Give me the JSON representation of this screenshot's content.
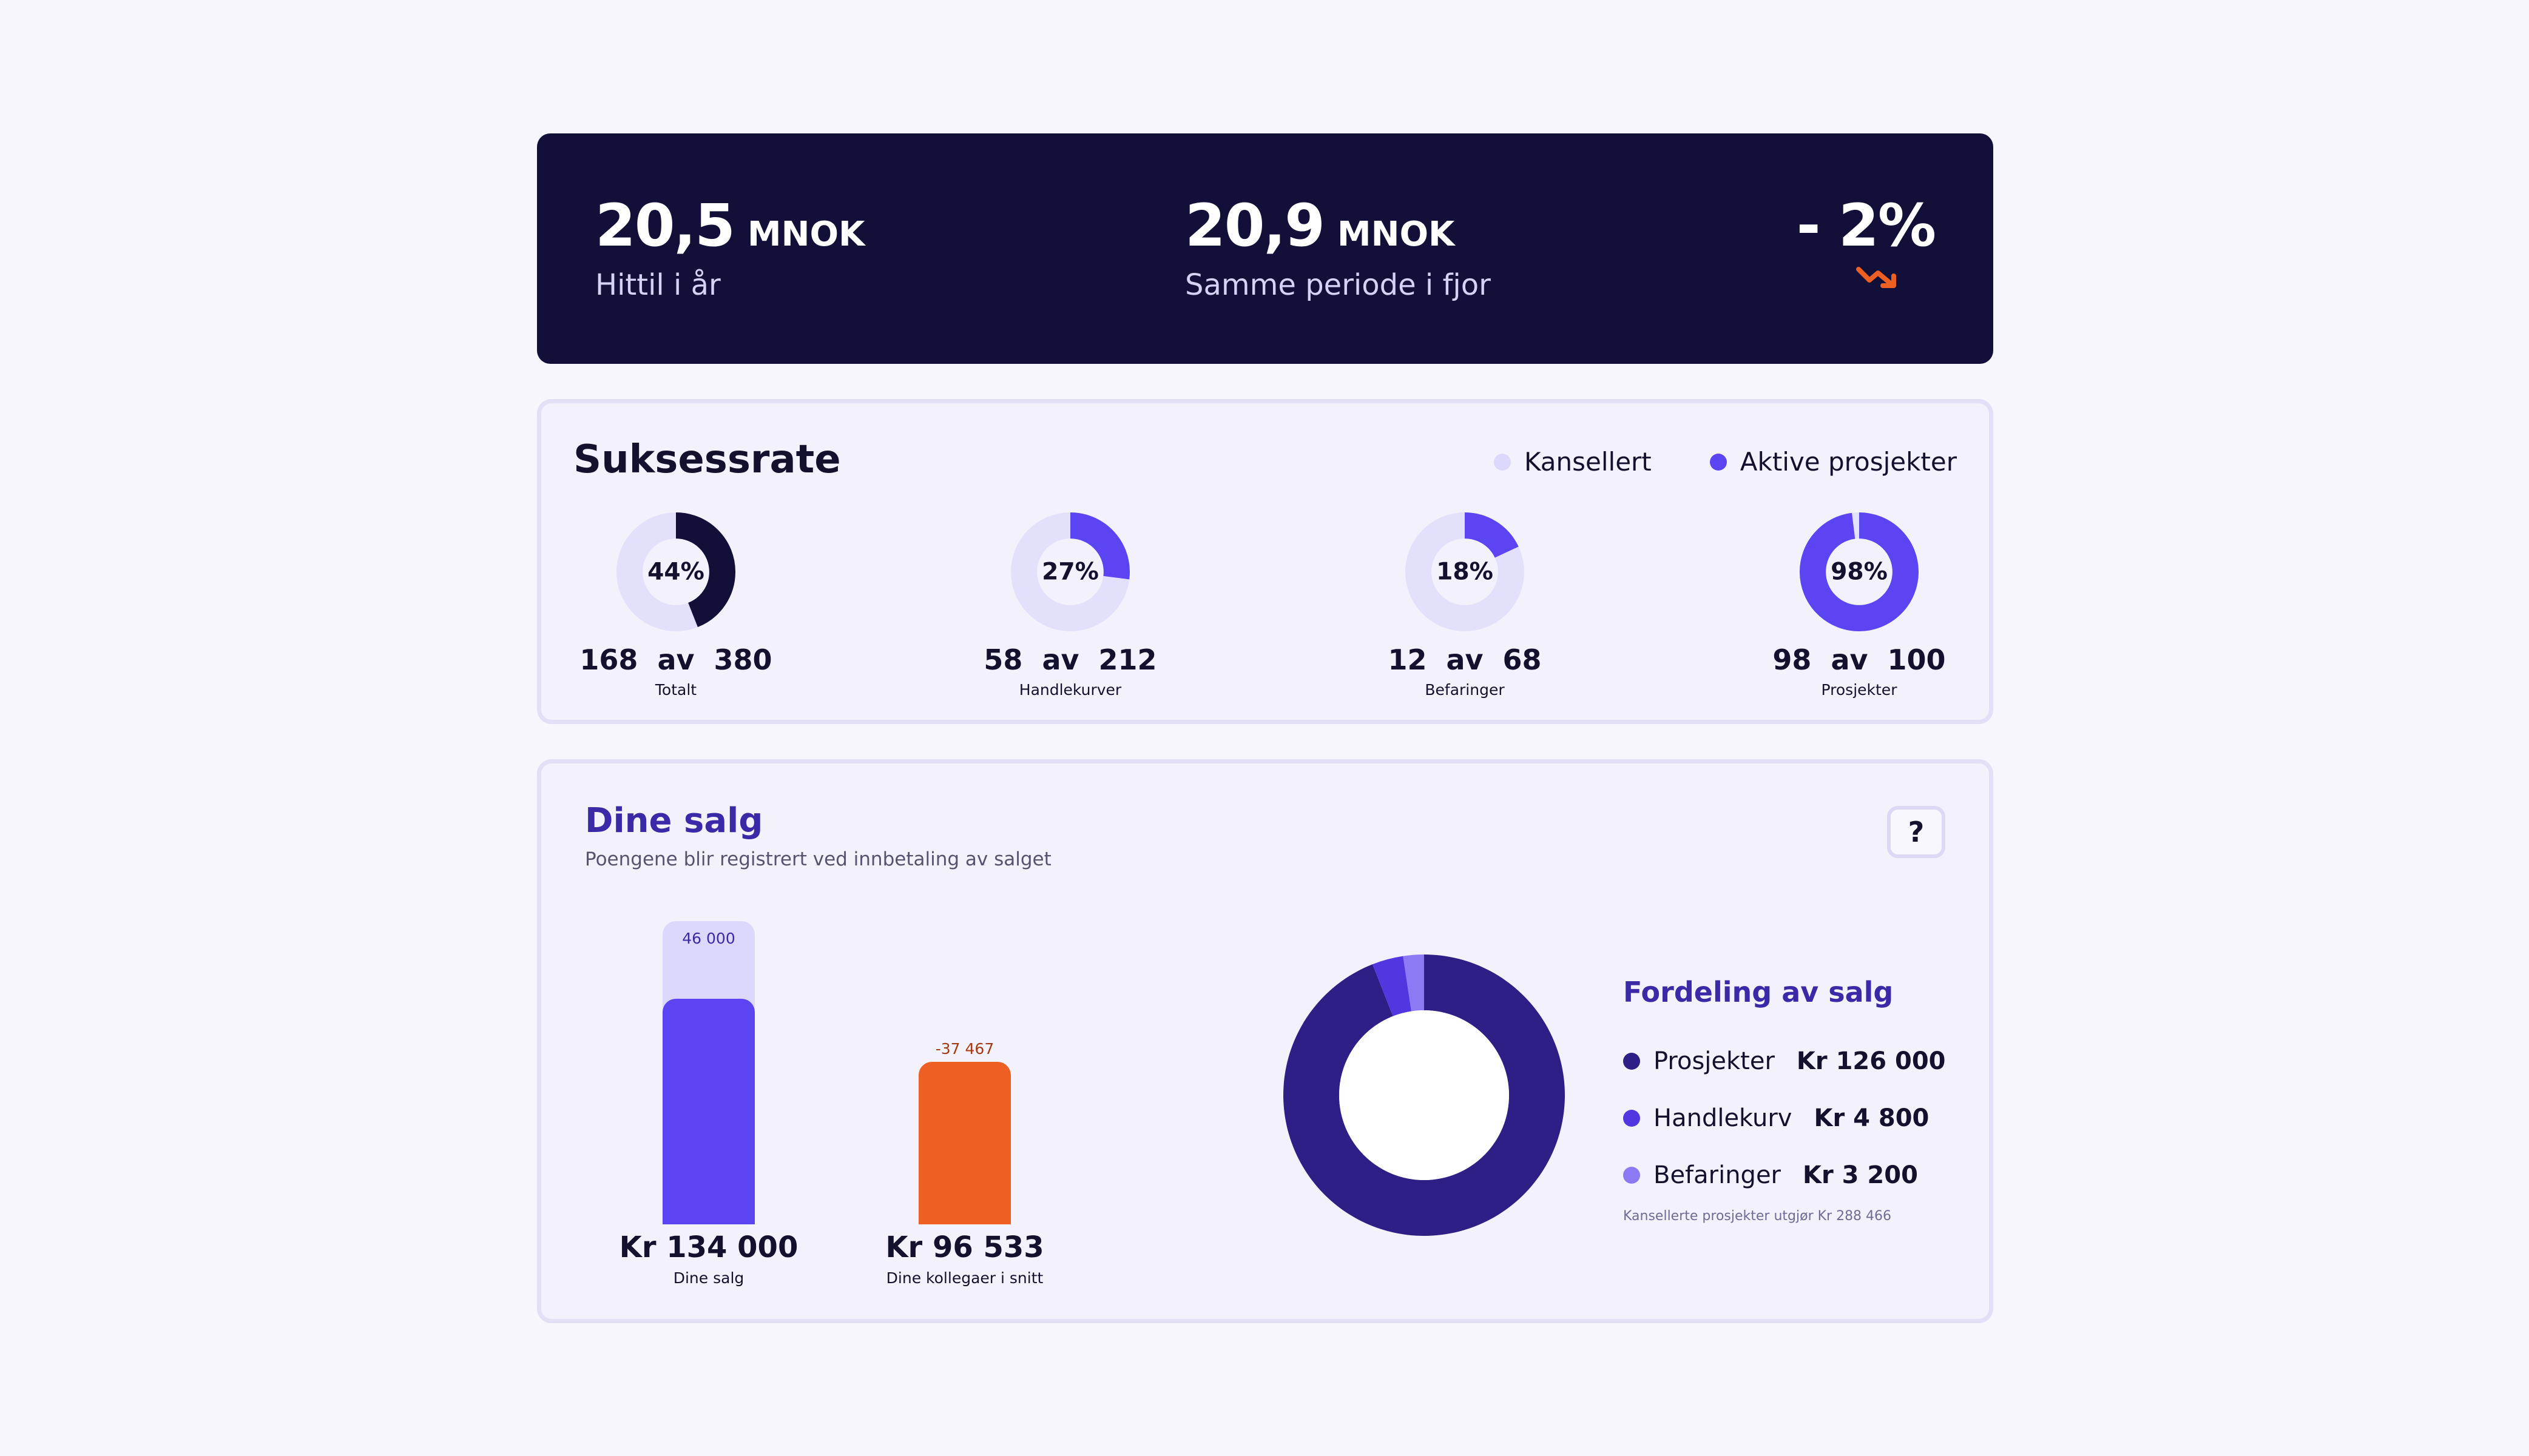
{
  "colors": {
    "navy": "#121038",
    "purple": "#5b44f2",
    "deep_purple": "#2e1f86",
    "light_purple": "#e3e0fb",
    "orange": "#ee5f24",
    "lavender": "#8c7af5"
  },
  "banner": {
    "ytd": {
      "value": "20,5",
      "unit": "MNOK",
      "label": "Hittil i år"
    },
    "last_year": {
      "value": "20,9",
      "unit": "MNOK",
      "label": "Samme periode i fjor"
    },
    "change": {
      "value": "- 2%",
      "trend_icon": "trend-down-icon"
    }
  },
  "success_rate": {
    "title": "Suksessrate",
    "legend": [
      {
        "label": "Kansellert",
        "color": "#dcd8fb"
      },
      {
        "label": "Aktive prosjekter",
        "color": "#5b44f2"
      }
    ],
    "items": [
      {
        "percent": "44%",
        "fraction": 0.44,
        "done": "168",
        "sep": "av",
        "total": "380",
        "caption": "Totalt",
        "color": "#121038"
      },
      {
        "percent": "27%",
        "fraction": 0.27,
        "done": "58",
        "sep": "av",
        "total": "212",
        "caption": "Handlekurver",
        "color": "#5b44f2"
      },
      {
        "percent": "18%",
        "fraction": 0.18,
        "done": "12",
        "sep": "av",
        "total": "68",
        "caption": "Befaringer",
        "color": "#5b44f2"
      },
      {
        "percent": "98%",
        "fraction": 0.98,
        "done": "98",
        "sep": "av",
        "total": "100",
        "caption": "Prosjekter",
        "color": "#5b44f2"
      }
    ]
  },
  "sales": {
    "title": "Dine salg",
    "subtitle": "Poengene blir registrert ved innbetaling av salget",
    "help_label": "?",
    "bars": [
      {
        "top_label": "46 000",
        "value": "Kr 134 000",
        "caption": "Dine salg",
        "amount": 134000,
        "ghost_amount": 180000,
        "color": "#5b44f2",
        "label_color": "#3b2aa8"
      },
      {
        "top_label": "-37 467",
        "value": "Kr 96 533",
        "caption": "Dine kollegaer i snitt",
        "amount": 96533,
        "ghost_amount": 0,
        "color": "#ee5f24",
        "label_color": "#a53a12"
      }
    ],
    "distribution": {
      "title": "Fordeling av salg",
      "items": [
        {
          "label": "Prosjekter",
          "amount": "Kr 126 000",
          "value": 126000,
          "color": "#2e1f86"
        },
        {
          "label": "Handlekurv",
          "amount": "Kr 4 800",
          "value": 4800,
          "color": "#5236e0"
        },
        {
          "label": "Befaringer",
          "amount": "Kr 3 200",
          "value": 3200,
          "color": "#8c7af5"
        }
      ],
      "note": "Kansellerte prosjekter utgjør Kr 288 466"
    }
  }
}
